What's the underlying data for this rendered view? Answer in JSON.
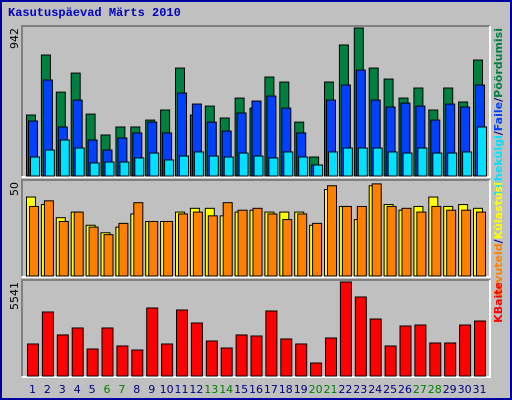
{
  "title": "Kasutuspäevad Märts 2010",
  "chart_data": [
    {
      "type": "bar",
      "ylim": [
        0,
        942
      ],
      "yticks": [
        942
      ],
      "series": [
        {
          "name": "Pöördumisi",
          "color": "#008040",
          "values": [
            388,
            770,
            534,
            655,
            394,
            261,
            312,
            312,
            356,
            420,
            687,
            388,
            445,
            369,
            496,
            432,
            630,
            598,
            343,
            121,
            598,
            834,
            942,
            687,
            617,
            496,
            560,
            420,
            560,
            471,
            738
          ]
        },
        {
          "name": "Faile",
          "color": "#0040ff",
          "values": [
            350,
            611,
            312,
            483,
            229,
            165,
            242,
            274,
            343,
            274,
            528,
            458,
            343,
            286,
            401,
            477,
            509,
            432,
            274,
            70,
            483,
            579,
            674,
            483,
            439,
            464,
            445,
            356,
            458,
            439,
            579
          ]
        },
        {
          "name": "Lehekülgi",
          "color": "#00e0ff",
          "values": [
            121,
            165,
            229,
            178,
            83,
            89,
            89,
            115,
            146,
            102,
            127,
            153,
            127,
            121,
            146,
            127,
            115,
            153,
            121,
            70,
            153,
            178,
            178,
            178,
            153,
            146,
            178,
            146,
            146,
            153,
            312
          ]
        }
      ]
    },
    {
      "type": "bar",
      "ylim": [
        0,
        50
      ],
      "yticks": [
        50
      ],
      "series": [
        {
          "name": "Külastusi",
          "color": "#ffff00",
          "values": [
            42,
            38,
            31,
            34,
            27,
            23,
            26,
            33,
            29,
            29,
            34,
            36,
            36,
            32,
            34,
            35,
            34,
            34,
            34,
            27,
            46,
            37,
            30,
            48,
            38,
            35,
            37,
            42,
            37,
            38,
            36
          ]
        },
        {
          "name": "Arvuteid",
          "color": "#ff8000",
          "values": [
            37,
            40,
            29,
            34,
            26,
            22,
            28,
            39,
            29,
            29,
            33,
            34,
            32,
            39,
            35,
            36,
            33,
            30,
            33,
            28,
            48,
            37,
            37,
            49,
            37,
            36,
            34,
            37,
            35,
            35,
            34
          ]
        }
      ]
    },
    {
      "type": "bar",
      "ylim": [
        0,
        5541
      ],
      "yticks": [
        5541
      ],
      "categories": [
        "1",
        "2",
        "3",
        "4",
        "5",
        "6",
        "7",
        "8",
        "9",
        "10",
        "11",
        "12",
        "13",
        "14",
        "15",
        "16",
        "17",
        "18",
        "19",
        "20",
        "21",
        "22",
        "23",
        "24",
        "25",
        "26",
        "27",
        "28",
        "29",
        "30",
        "31"
      ],
      "category_colors": [
        "#000080",
        "#000080",
        "#000080",
        "#000080",
        "#000080",
        "#008000",
        "#008000",
        "#000080",
        "#000080",
        "#000080",
        "#000080",
        "#000080",
        "#008000",
        "#008000",
        "#000080",
        "#000080",
        "#000080",
        "#000080",
        "#000080",
        "#008000",
        "#008000",
        "#000080",
        "#000080",
        "#000080",
        "#000080",
        "#000080",
        "#008000",
        "#008000",
        "#000080",
        "#000080",
        "#000080"
      ],
      "series": [
        {
          "name": "KBaite",
          "color": "#ff0000",
          "values": [
            1887,
            3773,
            2420,
            2830,
            1592,
            2830,
            1769,
            1533,
            4009,
            1887,
            3891,
            3124,
            2064,
            1651,
            2420,
            2358,
            3832,
            2182,
            1887,
            766,
            2240,
            5541,
            4657,
            3360,
            1769,
            2948,
            3006,
            1946,
            1946,
            3006,
            3242
          ]
        }
      ]
    }
  ]
}
